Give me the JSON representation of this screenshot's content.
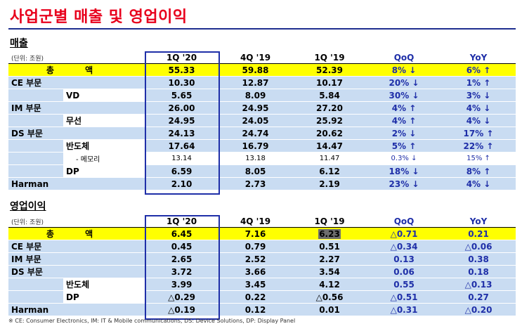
{
  "title": "사업군별 매출 및 영업이익",
  "sales": {
    "section": "매출",
    "unit": "(단위: 조원)",
    "headers": [
      "1Q '20",
      "4Q '19",
      "1Q '19",
      "QoQ",
      "YoY"
    ],
    "rows": [
      {
        "label": "총      액",
        "values": [
          "55.33",
          "59.88",
          "52.39",
          "8% ↓",
          "6% ↑"
        ]
      },
      {
        "label": "CE 부문",
        "values": [
          "10.30",
          "12.87",
          "10.17",
          "20% ↓",
          "1% ↑"
        ]
      },
      {
        "label": "VD",
        "values": [
          "5.65",
          "8.09",
          "5.84",
          "30% ↓",
          "3% ↓"
        ]
      },
      {
        "label": "IM 부문",
        "values": [
          "26.00",
          "24.95",
          "27.20",
          "4% ↑",
          "4% ↓"
        ]
      },
      {
        "label": "무선",
        "values": [
          "24.95",
          "24.05",
          "25.92",
          "4% ↑",
          "4% ↓"
        ]
      },
      {
        "label": "DS 부문",
        "values": [
          "24.13",
          "24.74",
          "20.62",
          "2% ↓",
          "17% ↑"
        ]
      },
      {
        "label": "반도체",
        "values": [
          "17.64",
          "16.79",
          "14.47",
          "5% ↑",
          "22% ↑"
        ]
      },
      {
        "label": "- 메모리",
        "values": [
          "13.14",
          "13.18",
          "11.47",
          "0.3% ↓",
          "15% ↑"
        ]
      },
      {
        "label": "DP",
        "values": [
          "6.59",
          "8.05",
          "6.12",
          "18% ↓",
          "8% ↑"
        ]
      },
      {
        "label": "Harman",
        "values": [
          "2.10",
          "2.73",
          "2.19",
          "23% ↓",
          "4% ↓"
        ]
      }
    ]
  },
  "op": {
    "section": "영업이익",
    "unit": "(단위: 조원)",
    "headers": [
      "1Q '20",
      "4Q '19",
      "1Q '19",
      "QoQ",
      "YoY"
    ],
    "rows": [
      {
        "label": "총      액",
        "values": [
          "6.45",
          "7.16",
          "6.23",
          "△0.71",
          "0.21"
        ]
      },
      {
        "label": "CE 부문",
        "values": [
          "0.45",
          "0.79",
          "0.51",
          "△0.34",
          "△0.06"
        ]
      },
      {
        "label": "IM 부문",
        "values": [
          "2.65",
          "2.52",
          "2.27",
          "0.13",
          "0.38"
        ]
      },
      {
        "label": "DS 부문",
        "values": [
          "3.72",
          "3.66",
          "3.54",
          "0.06",
          "0.18"
        ]
      },
      {
        "label": "반도체",
        "values": [
          "3.99",
          "3.45",
          "4.12",
          "0.55",
          "△0.13"
        ]
      },
      {
        "label": "DP",
        "values": [
          "△0.29",
          "0.22",
          "△0.56",
          "△0.51",
          "0.27"
        ]
      },
      {
        "label": "Harman",
        "values": [
          "△0.19",
          "0.12",
          "0.01",
          "△0.31",
          "△0.20"
        ]
      }
    ]
  },
  "footnote": "※ CE: Consumer Electronics, IM: IT & Mobile communications, DS: Device Solutions, DP: Display Panel",
  "colors": {
    "title": "#e8001c",
    "highlight": "#ffff00",
    "row_fill": "#c9dcf2",
    "accent": "#1f2fa8"
  }
}
